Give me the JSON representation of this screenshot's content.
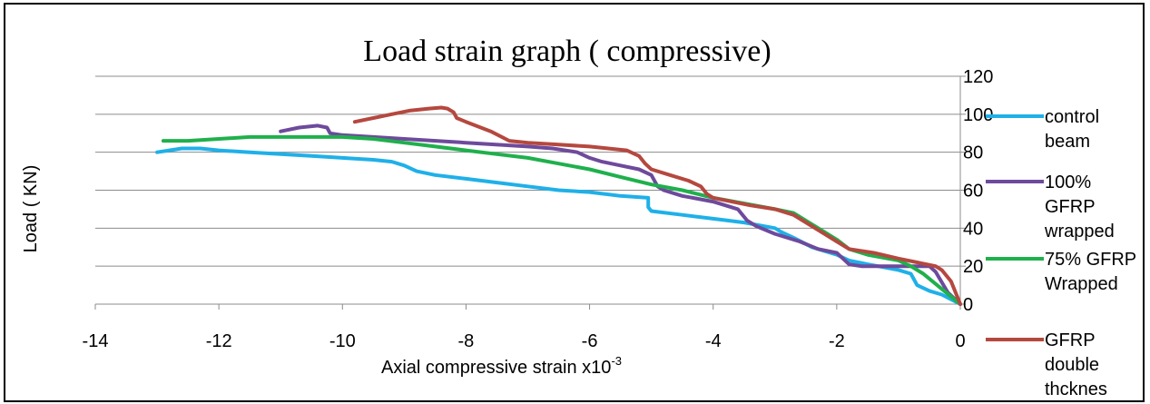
{
  "chart_data": {
    "type": "line",
    "title": "Load strain graph ( compressive)",
    "xlabel": "Axial compressive strain x10",
    "xlabel_superscript": "-3",
    "ylabel": "Load ( KN)",
    "xlim": [
      -14,
      0
    ],
    "ylim": [
      0,
      120
    ],
    "xticks": [
      -14,
      -12,
      -10,
      -8,
      -6,
      -4,
      -2,
      0
    ],
    "yticks": [
      0,
      20,
      40,
      60,
      80,
      100,
      120
    ],
    "grid": "horizontal",
    "legend_position": "right",
    "series": [
      {
        "name": "control beam",
        "color": "#1fb0e8",
        "legend_lines": [
          "control",
          "beam"
        ],
        "points": [
          [
            -13,
            80
          ],
          [
            -12.8,
            81
          ],
          [
            -12.6,
            82
          ],
          [
            -12.3,
            82
          ],
          [
            -12,
            81
          ],
          [
            -11.5,
            80
          ],
          [
            -11,
            79
          ],
          [
            -10.5,
            78
          ],
          [
            -10,
            77
          ],
          [
            -9.5,
            76
          ],
          [
            -9.2,
            75
          ],
          [
            -9,
            73
          ],
          [
            -8.8,
            70
          ],
          [
            -8.5,
            68
          ],
          [
            -8,
            66
          ],
          [
            -7.5,
            64
          ],
          [
            -7,
            62
          ],
          [
            -6.5,
            60
          ],
          [
            -6,
            59
          ],
          [
            -5.5,
            57
          ],
          [
            -5.05,
            56
          ],
          [
            -5.05,
            51
          ],
          [
            -5,
            49
          ],
          [
            -4.5,
            47
          ],
          [
            -4,
            45
          ],
          [
            -3.5,
            43
          ],
          [
            -3,
            40
          ],
          [
            -2.9,
            38
          ],
          [
            -2.7,
            35
          ],
          [
            -2.4,
            30
          ],
          [
            -2,
            26
          ],
          [
            -1.8,
            23
          ],
          [
            -1.5,
            21
          ],
          [
            -1,
            18
          ],
          [
            -0.8,
            16
          ],
          [
            -0.7,
            10
          ],
          [
            -0.5,
            7
          ],
          [
            -0.3,
            5
          ],
          [
            0,
            0
          ]
        ]
      },
      {
        "name": "100% GFRP wrapped",
        "color": "#6e4a9c",
        "legend_lines": [
          "100%",
          "GFRP",
          "wrapped"
        ],
        "points": [
          [
            -11,
            91
          ],
          [
            -10.7,
            93
          ],
          [
            -10.4,
            94
          ],
          [
            -10.25,
            93
          ],
          [
            -10.2,
            90
          ],
          [
            -10,
            89
          ],
          [
            -9.5,
            88
          ],
          [
            -9,
            87
          ],
          [
            -8,
            85
          ],
          [
            -7,
            83
          ],
          [
            -6.6,
            82
          ],
          [
            -6.2,
            80
          ],
          [
            -6,
            77
          ],
          [
            -5.8,
            75
          ],
          [
            -5.5,
            73
          ],
          [
            -5.2,
            71
          ],
          [
            -5,
            68
          ],
          [
            -4.9,
            62
          ],
          [
            -4.8,
            60
          ],
          [
            -4.5,
            57
          ],
          [
            -4,
            54
          ],
          [
            -3.6,
            50
          ],
          [
            -3.45,
            44
          ],
          [
            -3.3,
            41
          ],
          [
            -3,
            37
          ],
          [
            -2.6,
            33
          ],
          [
            -2.3,
            29
          ],
          [
            -2,
            27
          ],
          [
            -1.9,
            24
          ],
          [
            -1.8,
            21
          ],
          [
            -1.6,
            20
          ],
          [
            -1,
            20
          ],
          [
            -0.5,
            20
          ],
          [
            -0.4,
            17
          ],
          [
            -0.2,
            6
          ],
          [
            0,
            0
          ]
        ]
      },
      {
        "name": "75% GFRP Wrapped",
        "color": "#1fb04c",
        "legend_lines": [
          "75% GFRP",
          "Wrapped"
        ],
        "points": [
          [
            -12.9,
            86
          ],
          [
            -12.5,
            86
          ],
          [
            -12,
            87
          ],
          [
            -11.5,
            88
          ],
          [
            -11,
            88
          ],
          [
            -10.5,
            88
          ],
          [
            -10,
            88
          ],
          [
            -9.5,
            87
          ],
          [
            -9,
            85
          ],
          [
            -8.5,
            83
          ],
          [
            -8,
            81
          ],
          [
            -7.5,
            79
          ],
          [
            -7,
            77
          ],
          [
            -6.5,
            74
          ],
          [
            -6,
            71
          ],
          [
            -5.5,
            67
          ],
          [
            -5,
            63
          ],
          [
            -4.5,
            60
          ],
          [
            -4,
            56
          ],
          [
            -3.5,
            53
          ],
          [
            -3,
            50
          ],
          [
            -2.7,
            48
          ],
          [
            -2.5,
            44
          ],
          [
            -2.2,
            38
          ],
          [
            -2,
            34
          ],
          [
            -1.8,
            29
          ],
          [
            -1.5,
            26
          ],
          [
            -1,
            23
          ],
          [
            -0.8,
            20
          ],
          [
            -0.6,
            16
          ],
          [
            -0.3,
            8
          ],
          [
            0,
            0
          ]
        ]
      },
      {
        "name": "GFRP double thcknes",
        "color": "#b5483f",
        "legend_lines": [
          "GFRP",
          "double",
          "thcknes"
        ],
        "points": [
          [
            -9.8,
            96
          ],
          [
            -9.5,
            98
          ],
          [
            -9.2,
            100
          ],
          [
            -8.9,
            102
          ],
          [
            -8.6,
            103
          ],
          [
            -8.4,
            103.5
          ],
          [
            -8.3,
            103
          ],
          [
            -8.2,
            101
          ],
          [
            -8.15,
            98
          ],
          [
            -8,
            96
          ],
          [
            -7.6,
            91
          ],
          [
            -7.3,
            86
          ],
          [
            -7,
            85
          ],
          [
            -6.5,
            84
          ],
          [
            -6,
            83
          ],
          [
            -5.7,
            82
          ],
          [
            -5.4,
            81
          ],
          [
            -5.2,
            78
          ],
          [
            -5.1,
            74
          ],
          [
            -5,
            71
          ],
          [
            -4.7,
            68
          ],
          [
            -4.4,
            65
          ],
          [
            -4.2,
            62
          ],
          [
            -4.1,
            58
          ],
          [
            -4,
            56
          ],
          [
            -3.7,
            54
          ],
          [
            -3.4,
            52
          ],
          [
            -3,
            50
          ],
          [
            -2.7,
            47
          ],
          [
            -2.4,
            41
          ],
          [
            -2.2,
            37
          ],
          [
            -2,
            33
          ],
          [
            -1.8,
            29
          ],
          [
            -1.4,
            27
          ],
          [
            -1,
            24
          ],
          [
            -0.7,
            22
          ],
          [
            -0.4,
            20
          ],
          [
            -0.3,
            18
          ],
          [
            -0.15,
            12
          ],
          [
            0,
            0
          ]
        ]
      }
    ]
  }
}
